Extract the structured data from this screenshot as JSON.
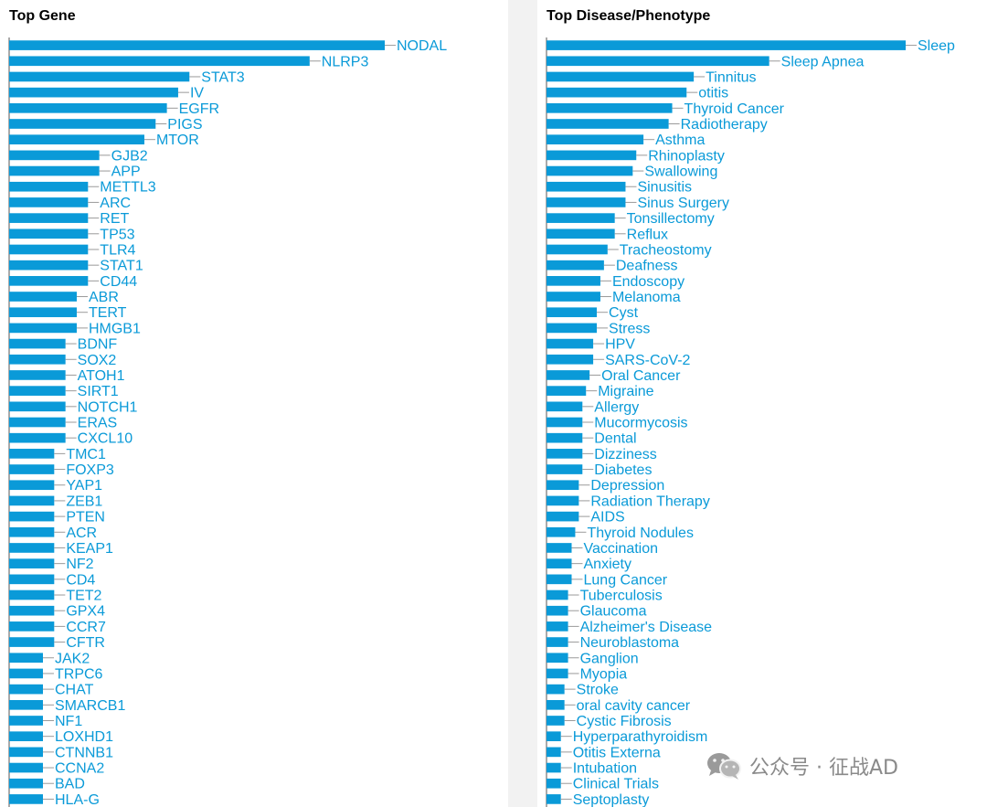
{
  "accent_color": "#0a9ad8",
  "watermark": {
    "text": "公众号 · 征战AD",
    "icon": "wechat-icon"
  },
  "chart_data": [
    {
      "type": "bar",
      "orientation": "horizontal",
      "title": "Top Gene",
      "xlim": [
        0,
        100
      ],
      "grid": false,
      "categories": [
        "NODAL",
        "NLRP3",
        "STAT3",
        "IV",
        "EGFR",
        "PIGS",
        "MTOR",
        "GJB2",
        "APP",
        "METTL3",
        "ARC",
        "RET",
        "TP53",
        "TLR4",
        "STAT1",
        "CD44",
        "ABR",
        "TERT",
        "HMGB1",
        "BDNF",
        "SOX2",
        "ATOH1",
        "SIRT1",
        "NOTCH1",
        "ERAS",
        "CXCL10",
        "TMC1",
        "FOXP3",
        "YAP1",
        "ZEB1",
        "PTEN",
        "ACR",
        "KEAP1",
        "NF2",
        "CD4",
        "TET2",
        "GPX4",
        "CCR7",
        "CFTR",
        "JAK2",
        "TRPC6",
        "CHAT",
        "SMARCB1",
        "NF1",
        "LOXHD1",
        "CTNNB1",
        "CCNA2",
        "BAD",
        "HLA-G"
      ],
      "values": [
        100,
        80,
        48,
        45,
        42,
        39,
        36,
        24,
        24,
        21,
        21,
        21,
        21,
        21,
        21,
        21,
        18,
        18,
        18,
        15,
        15,
        15,
        15,
        15,
        15,
        15,
        12,
        12,
        12,
        12,
        12,
        12,
        12,
        12,
        12,
        12,
        12,
        12,
        12,
        9,
        9,
        9,
        9,
        9,
        9,
        9,
        9,
        9,
        9
      ]
    },
    {
      "type": "bar",
      "orientation": "horizontal",
      "title": "Top Disease/Phenotype",
      "xlim": [
        0,
        100
      ],
      "grid": false,
      "categories": [
        "Sleep",
        "Sleep Apnea",
        "Tinnitus",
        "otitis",
        "Thyroid Cancer",
        "Radiotherapy",
        "Asthma",
        "Rhinoplasty",
        "Swallowing",
        "Sinusitis",
        "Sinus Surgery",
        "Tonsillectomy",
        "Reflux",
        "Tracheostomy",
        "Deafness",
        "Endoscopy",
        "Melanoma",
        "Cyst",
        "Stress",
        "HPV",
        "SARS-CoV-2",
        "Oral Cancer",
        "Migraine",
        "Allergy",
        "Mucormycosis",
        "Dental",
        "Dizziness",
        "Diabetes",
        "Depression",
        "Radiation Therapy",
        "AIDS",
        "Thyroid Nodules",
        "Vaccination",
        "Anxiety",
        "Lung Cancer",
        "Tuberculosis",
        "Glaucoma",
        "Alzheimer's Disease",
        "Neuroblastoma",
        "Ganglion",
        "Myopia",
        "Stroke",
        "oral cavity cancer",
        "Cystic Fibrosis",
        "Hyperparathyroidism",
        "Otitis Externa",
        "Intubation",
        "Clinical Trials",
        "Septoplasty"
      ],
      "values": [
        100,
        62,
        41,
        39,
        35,
        34,
        27,
        25,
        24,
        22,
        22,
        19,
        19,
        17,
        16,
        15,
        15,
        14,
        14,
        13,
        13,
        12,
        11,
        10,
        10,
        10,
        10,
        10,
        9,
        9,
        9,
        8,
        7,
        7,
        7,
        6,
        6,
        6,
        6,
        6,
        6,
        5,
        5,
        5,
        4,
        4,
        4,
        4,
        4
      ]
    }
  ]
}
